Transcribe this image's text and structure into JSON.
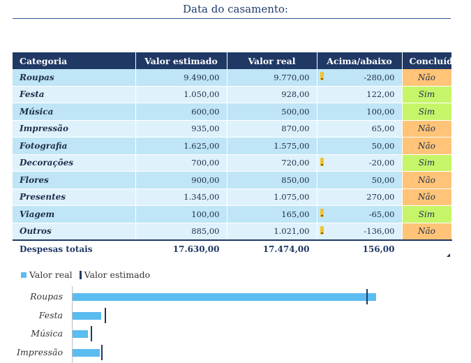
{
  "title": "Data do casamento:",
  "table": {
    "headers": [
      "Categoria",
      "Valor estimado",
      "Valor real",
      "Acima/abaixo",
      "Concluído"
    ],
    "rows": [
      {
        "category": "Roupas",
        "estimated": "9.490,00",
        "actual": "9.770,00",
        "diff": "-280,00",
        "warn": true,
        "done": "Não"
      },
      {
        "category": "Festa",
        "estimated": "1.050,00",
        "actual": "928,00",
        "diff": "122,00",
        "warn": false,
        "done": "Sim"
      },
      {
        "category": "Música",
        "estimated": "600,00",
        "actual": "500,00",
        "diff": "100,00",
        "warn": false,
        "done": "Sim"
      },
      {
        "category": "Impressão",
        "estimated": "935,00",
        "actual": "870,00",
        "diff": "65,00",
        "warn": false,
        "done": "Não"
      },
      {
        "category": "Fotografia",
        "estimated": "1.625,00",
        "actual": "1.575,00",
        "diff": "50,00",
        "warn": false,
        "done": "Não"
      },
      {
        "category": "Decorações",
        "estimated": "700,00",
        "actual": "720,00",
        "diff": "-20,00",
        "warn": true,
        "done": "Sim"
      },
      {
        "category": "Flores",
        "estimated": "900,00",
        "actual": "850,00",
        "diff": "50,00",
        "warn": false,
        "done": "Não"
      },
      {
        "category": "Presentes",
        "estimated": "1.345,00",
        "actual": "1.075,00",
        "diff": "270,00",
        "warn": false,
        "done": "Não"
      },
      {
        "category": "Viagem",
        "estimated": "100,00",
        "actual": "165,00",
        "diff": "-65,00",
        "warn": true,
        "done": "Sim"
      },
      {
        "category": "Outros",
        "estimated": "885,00",
        "actual": "1.021,00",
        "diff": "-136,00",
        "warn": true,
        "done": "Não"
      }
    ],
    "totals": {
      "label": "Despesas totais",
      "estimated": "17.630,00",
      "actual": "17.474,00",
      "diff": "156,00"
    }
  },
  "colors": {
    "header_bg": "#1f3864",
    "row_odd": "#bfe5f7",
    "row_even": "#dff2fc",
    "nao": "#ffc478",
    "sim": "#c6f56a",
    "bar_real": "#5bbcf0",
    "marker_estimated": "#1f3864"
  },
  "chart_data": {
    "type": "bar",
    "orientation": "horizontal",
    "categories": [
      "Roupas",
      "Festa",
      "Música",
      "Impressão"
    ],
    "series": [
      {
        "name": "Valor real",
        "values": [
          9770,
          928,
          500,
          870
        ]
      },
      {
        "name": "Valor estimado",
        "values": [
          9490,
          1050,
          600,
          935
        ]
      }
    ],
    "legend": "top-left",
    "xlim": [
      0,
      10000
    ]
  }
}
